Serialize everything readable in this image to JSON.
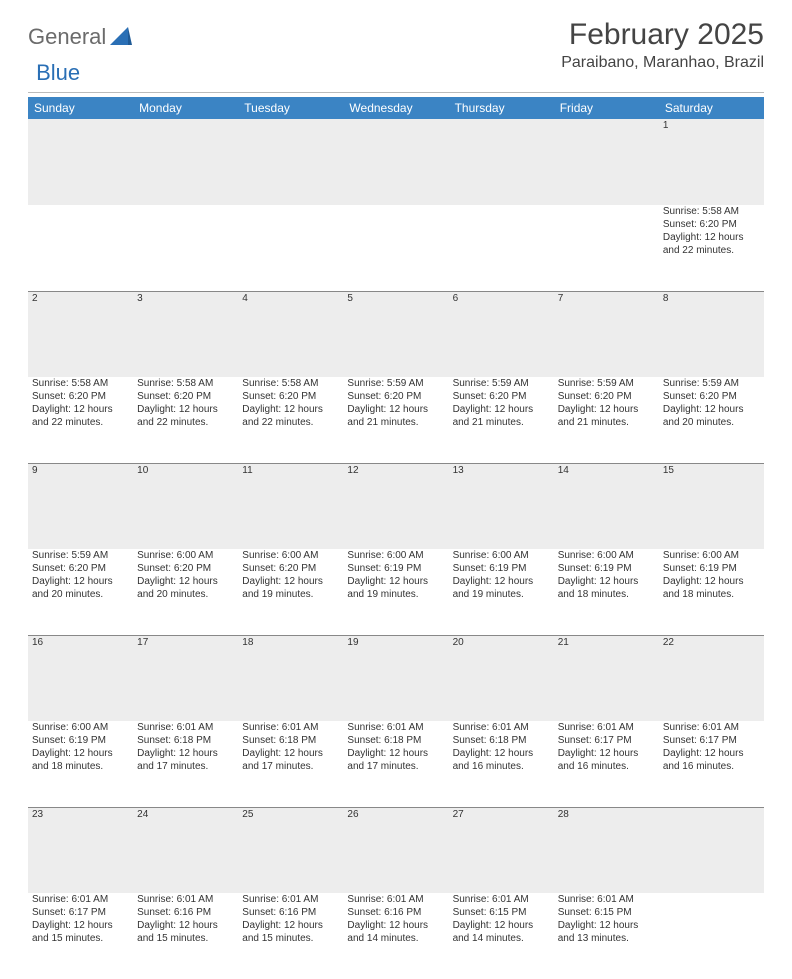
{
  "brand": {
    "part1": "General",
    "part2": "Blue",
    "shape_color": "#2a6fb5"
  },
  "title": "February 2025",
  "location": "Paraibano, Maranhao, Brazil",
  "colors": {
    "header_bg": "#3b84c4",
    "header_fg": "#ffffff",
    "daynum_bg": "#ededed",
    "rule": "#888888",
    "text": "#333333"
  },
  "weekdays": [
    "Sunday",
    "Monday",
    "Tuesday",
    "Wednesday",
    "Thursday",
    "Friday",
    "Saturday"
  ],
  "weeks": [
    [
      null,
      null,
      null,
      null,
      null,
      null,
      {
        "n": "1",
        "sr": "Sunrise: 5:58 AM",
        "ss": "Sunset: 6:20 PM",
        "d1": "Daylight: 12 hours",
        "d2": "and 22 minutes."
      }
    ],
    [
      {
        "n": "2",
        "sr": "Sunrise: 5:58 AM",
        "ss": "Sunset: 6:20 PM",
        "d1": "Daylight: 12 hours",
        "d2": "and 22 minutes."
      },
      {
        "n": "3",
        "sr": "Sunrise: 5:58 AM",
        "ss": "Sunset: 6:20 PM",
        "d1": "Daylight: 12 hours",
        "d2": "and 22 minutes."
      },
      {
        "n": "4",
        "sr": "Sunrise: 5:58 AM",
        "ss": "Sunset: 6:20 PM",
        "d1": "Daylight: 12 hours",
        "d2": "and 22 minutes."
      },
      {
        "n": "5",
        "sr": "Sunrise: 5:59 AM",
        "ss": "Sunset: 6:20 PM",
        "d1": "Daylight: 12 hours",
        "d2": "and 21 minutes."
      },
      {
        "n": "6",
        "sr": "Sunrise: 5:59 AM",
        "ss": "Sunset: 6:20 PM",
        "d1": "Daylight: 12 hours",
        "d2": "and 21 minutes."
      },
      {
        "n": "7",
        "sr": "Sunrise: 5:59 AM",
        "ss": "Sunset: 6:20 PM",
        "d1": "Daylight: 12 hours",
        "d2": "and 21 minutes."
      },
      {
        "n": "8",
        "sr": "Sunrise: 5:59 AM",
        "ss": "Sunset: 6:20 PM",
        "d1": "Daylight: 12 hours",
        "d2": "and 20 minutes."
      }
    ],
    [
      {
        "n": "9",
        "sr": "Sunrise: 5:59 AM",
        "ss": "Sunset: 6:20 PM",
        "d1": "Daylight: 12 hours",
        "d2": "and 20 minutes."
      },
      {
        "n": "10",
        "sr": "Sunrise: 6:00 AM",
        "ss": "Sunset: 6:20 PM",
        "d1": "Daylight: 12 hours",
        "d2": "and 20 minutes."
      },
      {
        "n": "11",
        "sr": "Sunrise: 6:00 AM",
        "ss": "Sunset: 6:20 PM",
        "d1": "Daylight: 12 hours",
        "d2": "and 19 minutes."
      },
      {
        "n": "12",
        "sr": "Sunrise: 6:00 AM",
        "ss": "Sunset: 6:19 PM",
        "d1": "Daylight: 12 hours",
        "d2": "and 19 minutes."
      },
      {
        "n": "13",
        "sr": "Sunrise: 6:00 AM",
        "ss": "Sunset: 6:19 PM",
        "d1": "Daylight: 12 hours",
        "d2": "and 19 minutes."
      },
      {
        "n": "14",
        "sr": "Sunrise: 6:00 AM",
        "ss": "Sunset: 6:19 PM",
        "d1": "Daylight: 12 hours",
        "d2": "and 18 minutes."
      },
      {
        "n": "15",
        "sr": "Sunrise: 6:00 AM",
        "ss": "Sunset: 6:19 PM",
        "d1": "Daylight: 12 hours",
        "d2": "and 18 minutes."
      }
    ],
    [
      {
        "n": "16",
        "sr": "Sunrise: 6:00 AM",
        "ss": "Sunset: 6:19 PM",
        "d1": "Daylight: 12 hours",
        "d2": "and 18 minutes."
      },
      {
        "n": "17",
        "sr": "Sunrise: 6:01 AM",
        "ss": "Sunset: 6:18 PM",
        "d1": "Daylight: 12 hours",
        "d2": "and 17 minutes."
      },
      {
        "n": "18",
        "sr": "Sunrise: 6:01 AM",
        "ss": "Sunset: 6:18 PM",
        "d1": "Daylight: 12 hours",
        "d2": "and 17 minutes."
      },
      {
        "n": "19",
        "sr": "Sunrise: 6:01 AM",
        "ss": "Sunset: 6:18 PM",
        "d1": "Daylight: 12 hours",
        "d2": "and 17 minutes."
      },
      {
        "n": "20",
        "sr": "Sunrise: 6:01 AM",
        "ss": "Sunset: 6:18 PM",
        "d1": "Daylight: 12 hours",
        "d2": "and 16 minutes."
      },
      {
        "n": "21",
        "sr": "Sunrise: 6:01 AM",
        "ss": "Sunset: 6:17 PM",
        "d1": "Daylight: 12 hours",
        "d2": "and 16 minutes."
      },
      {
        "n": "22",
        "sr": "Sunrise: 6:01 AM",
        "ss": "Sunset: 6:17 PM",
        "d1": "Daylight: 12 hours",
        "d2": "and 16 minutes."
      }
    ],
    [
      {
        "n": "23",
        "sr": "Sunrise: 6:01 AM",
        "ss": "Sunset: 6:17 PM",
        "d1": "Daylight: 12 hours",
        "d2": "and 15 minutes."
      },
      {
        "n": "24",
        "sr": "Sunrise: 6:01 AM",
        "ss": "Sunset: 6:16 PM",
        "d1": "Daylight: 12 hours",
        "d2": "and 15 minutes."
      },
      {
        "n": "25",
        "sr": "Sunrise: 6:01 AM",
        "ss": "Sunset: 6:16 PM",
        "d1": "Daylight: 12 hours",
        "d2": "and 15 minutes."
      },
      {
        "n": "26",
        "sr": "Sunrise: 6:01 AM",
        "ss": "Sunset: 6:16 PM",
        "d1": "Daylight: 12 hours",
        "d2": "and 14 minutes."
      },
      {
        "n": "27",
        "sr": "Sunrise: 6:01 AM",
        "ss": "Sunset: 6:15 PM",
        "d1": "Daylight: 12 hours",
        "d2": "and 14 minutes."
      },
      {
        "n": "28",
        "sr": "Sunrise: 6:01 AM",
        "ss": "Sunset: 6:15 PM",
        "d1": "Daylight: 12 hours",
        "d2": "and 13 minutes."
      },
      null
    ]
  ]
}
